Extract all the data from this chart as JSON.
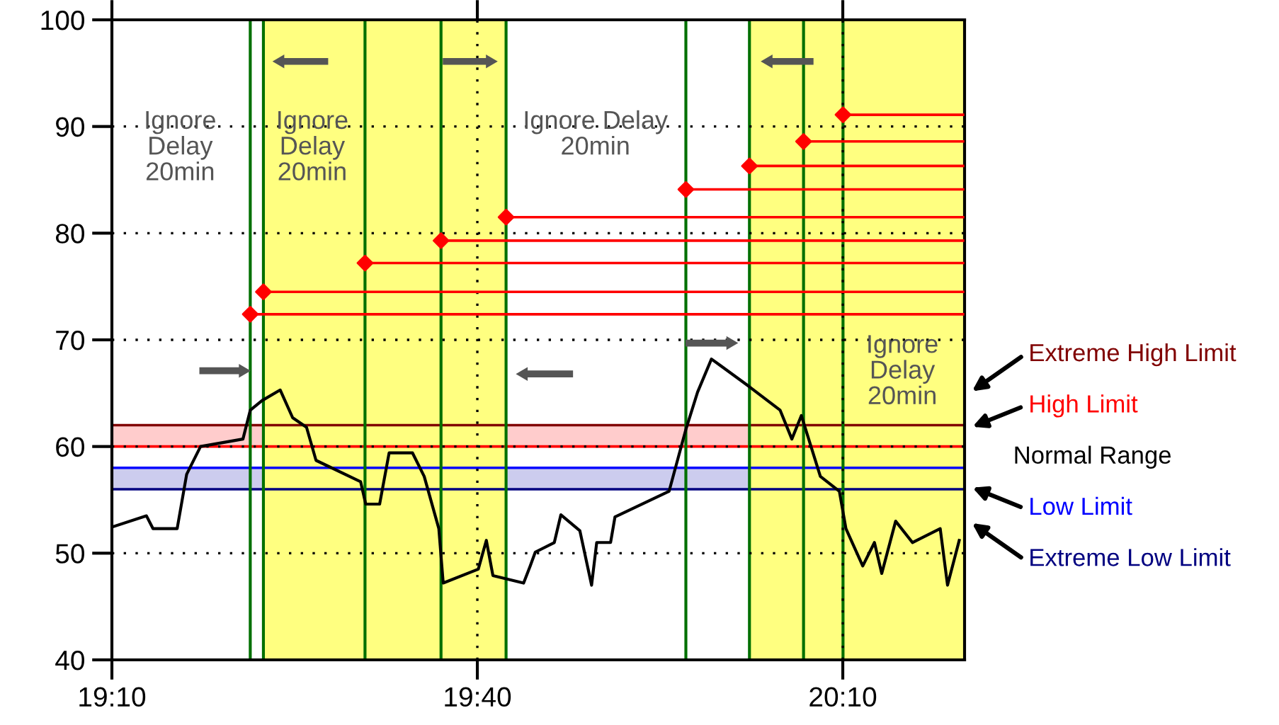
{
  "chart_data": {
    "type": "line",
    "xlim": [
      19.1667,
      20.3333
    ],
    "xticks": [
      {
        "value": 19.1667,
        "label": "19:10"
      },
      {
        "value": 19.6667,
        "label": "19:40"
      },
      {
        "value": 20.1667,
        "label": "20:10"
      }
    ],
    "ylim": [
      40,
      100
    ],
    "yticks": [
      40,
      50,
      60,
      70,
      80,
      90,
      100
    ],
    "grid": true,
    "series": [
      {
        "color": "#000000",
        "marker": "none",
        "x": [
          19.169,
          19.214,
          19.223,
          19.256,
          19.269,
          19.288,
          19.346,
          19.356,
          19.372,
          19.397,
          19.414,
          19.433,
          19.446,
          19.507,
          19.514,
          19.533,
          19.546,
          19.578,
          19.594,
          19.614,
          19.62,
          19.668,
          19.679,
          19.688,
          19.73,
          19.739,
          19.746,
          19.772,
          19.781,
          19.807,
          19.823,
          19.83,
          19.849,
          19.855,
          19.929,
          19.952,
          19.968,
          19.987,
          20.039,
          20.081,
          20.097,
          20.11,
          20.136,
          20.162,
          20.171,
          20.194,
          20.21,
          20.22,
          20.239,
          20.262,
          20.3,
          20.31,
          20.326
        ],
        "values": [
          52.5,
          53.5,
          52.3,
          52.3,
          57.4,
          60.0,
          60.7,
          63.4,
          64.3,
          65.3,
          62.7,
          61.8,
          58.7,
          56.7,
          54.6,
          54.6,
          59.4,
          59.4,
          57.2,
          52.3,
          47.2,
          48.5,
          51.2,
          47.9,
          47.2,
          48.8,
          50.1,
          51.0,
          53.6,
          52.1,
          47.0,
          51.0,
          51.0,
          53.4,
          55.8,
          61.6,
          65.1,
          68.2,
          65.6,
          63.4,
          60.7,
          62.9,
          57.2,
          55.8,
          52.3,
          48.8,
          51.0,
          48.1,
          53.0,
          51.0,
          52.3,
          47.0,
          51.2
        ]
      },
      {
        "type": "scatter",
        "color": "#ff0000",
        "marker": "diamond",
        "x": [
          19.356,
          19.374,
          19.513,
          19.617,
          19.706,
          19.952,
          20.039,
          20.113,
          20.167
        ],
        "values": [
          72.4,
          74.5,
          77.2,
          79.3,
          81.5,
          84.1,
          86.3,
          88.6,
          91.1
        ],
        "xerrors": [
          [
            19.356,
            20.333
          ],
          [
            19.374,
            20.333
          ],
          [
            19.513,
            20.333
          ],
          [
            19.617,
            20.333
          ],
          [
            19.706,
            20.333
          ],
          [
            19.952,
            20.333
          ],
          [
            20.039,
            20.333
          ],
          [
            20.113,
            20.333
          ],
          [
            20.167,
            20.333
          ]
        ]
      }
    ],
    "ref_lines": [
      {
        "axis": "y",
        "value": 62,
        "label": "Extreme High Limit",
        "color": "#800000"
      },
      {
        "axis": "y",
        "value": 60,
        "label": "High Limit",
        "color": "#ff0000"
      },
      {
        "axis": "y",
        "value": 58,
        "label": "Low Limit",
        "color": "#0000ff"
      },
      {
        "axis": "y",
        "value": 56,
        "label": "Extreme Low Limit",
        "color": "#000080"
      },
      {
        "axis": "x",
        "value": 19.356,
        "color": "#007000"
      },
      {
        "axis": "x",
        "value": 19.374,
        "color": "#007000"
      },
      {
        "axis": "x",
        "value": 19.513,
        "color": "#007000"
      },
      {
        "axis": "x",
        "value": 19.617,
        "color": "#007000"
      },
      {
        "axis": "x",
        "value": 19.706,
        "color": "#007000"
      },
      {
        "axis": "x",
        "value": 19.952,
        "color": "#007000"
      },
      {
        "axis": "x",
        "value": 20.039,
        "color": "#007000"
      },
      {
        "axis": "x",
        "value": 20.113,
        "color": "#007000"
      },
      {
        "axis": "x",
        "value": 20.167,
        "color": "#007000"
      }
    ],
    "bands": [
      {
        "axis": "y",
        "from": 60,
        "to": 62,
        "color": "#ffcccc"
      },
      {
        "axis": "y",
        "from": 56,
        "to": 58,
        "color": "#ccccee"
      },
      {
        "axis": "x",
        "from": 19.374,
        "to": 19.706,
        "color": "#ffff80"
      },
      {
        "axis": "x",
        "from": 20.039,
        "to": 20.333,
        "color": "#ffff80"
      }
    ],
    "annotations": [
      "Ignore\nDelay\n20min",
      "Ignore\nDelay\n20min",
      "Ignore Delay\n20min",
      "Ignore\nDelay\n20min",
      "Normal Range"
    ]
  }
}
